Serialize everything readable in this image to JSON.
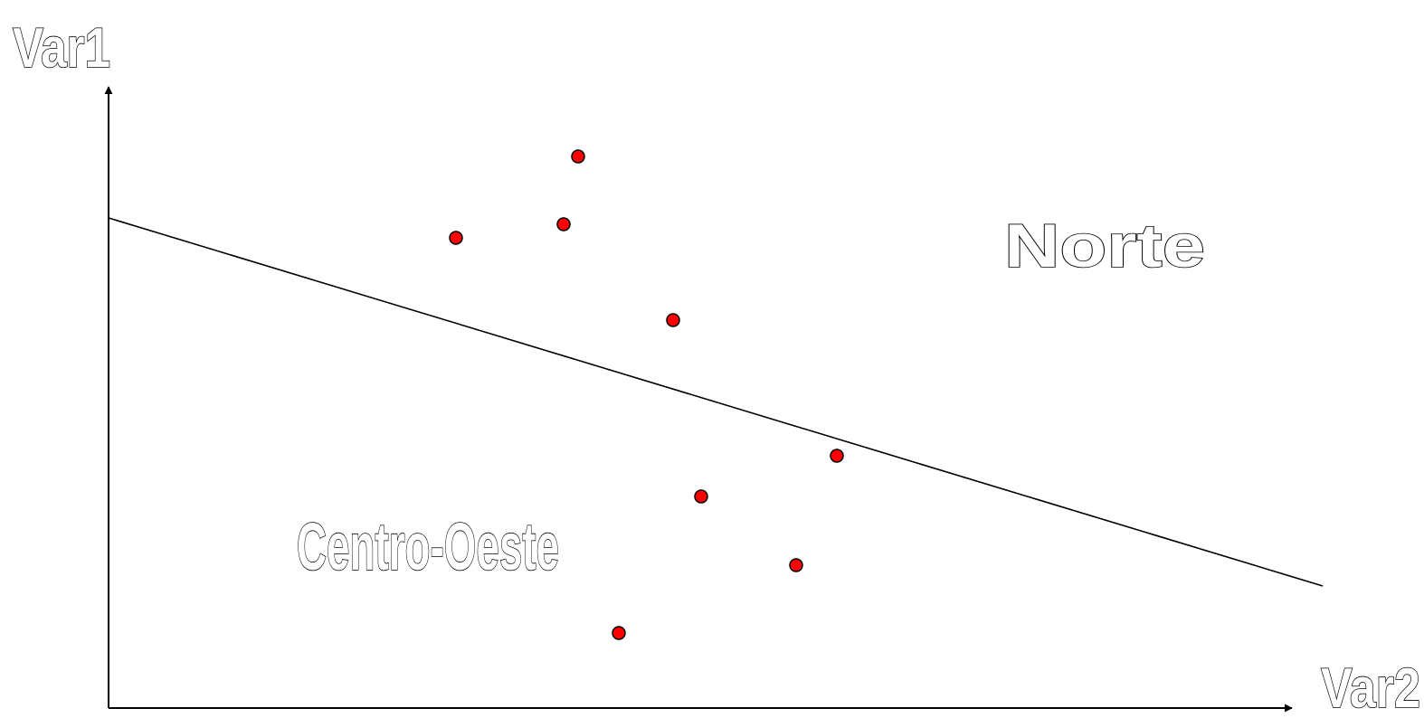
{
  "axes": {
    "y_label": "Var1",
    "x_label": "Var2"
  },
  "regions": {
    "upper_label": "Norte",
    "lower_label": "Centro-Oeste"
  },
  "colors": {
    "point_fill": "#ff0000",
    "point_stroke": "#000000",
    "line": "#000000",
    "label_fill": "#ffffff",
    "label_stroke": "#000000"
  }
}
